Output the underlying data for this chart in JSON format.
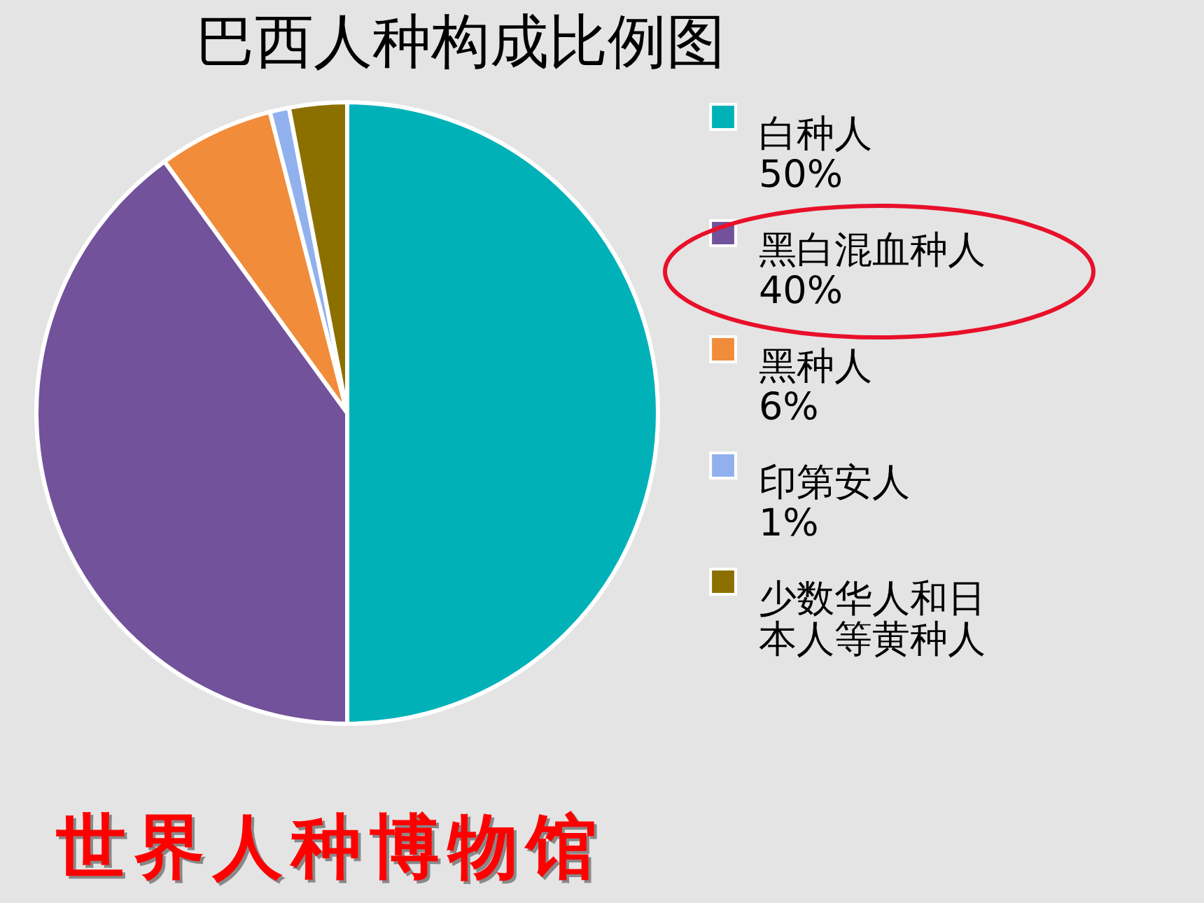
{
  "chart_data": {
    "type": "pie",
    "title": "巴西人种构成比例图",
    "categories": [
      "白种人",
      "黑白混血种人",
      "黑种人",
      "印第安人",
      "少数华人和日本人等黄种人"
    ],
    "values": [
      50,
      40,
      6,
      1,
      3
    ],
    "value_labels": [
      "50%",
      "40%",
      "6%",
      "1%",
      null
    ],
    "colors": [
      "#00b2b8",
      "#72529a",
      "#f18c3a",
      "#91b1ee",
      "#8b7000"
    ],
    "legend": "right",
    "annotations": [
      "世界人种博物馆"
    ]
  }
}
